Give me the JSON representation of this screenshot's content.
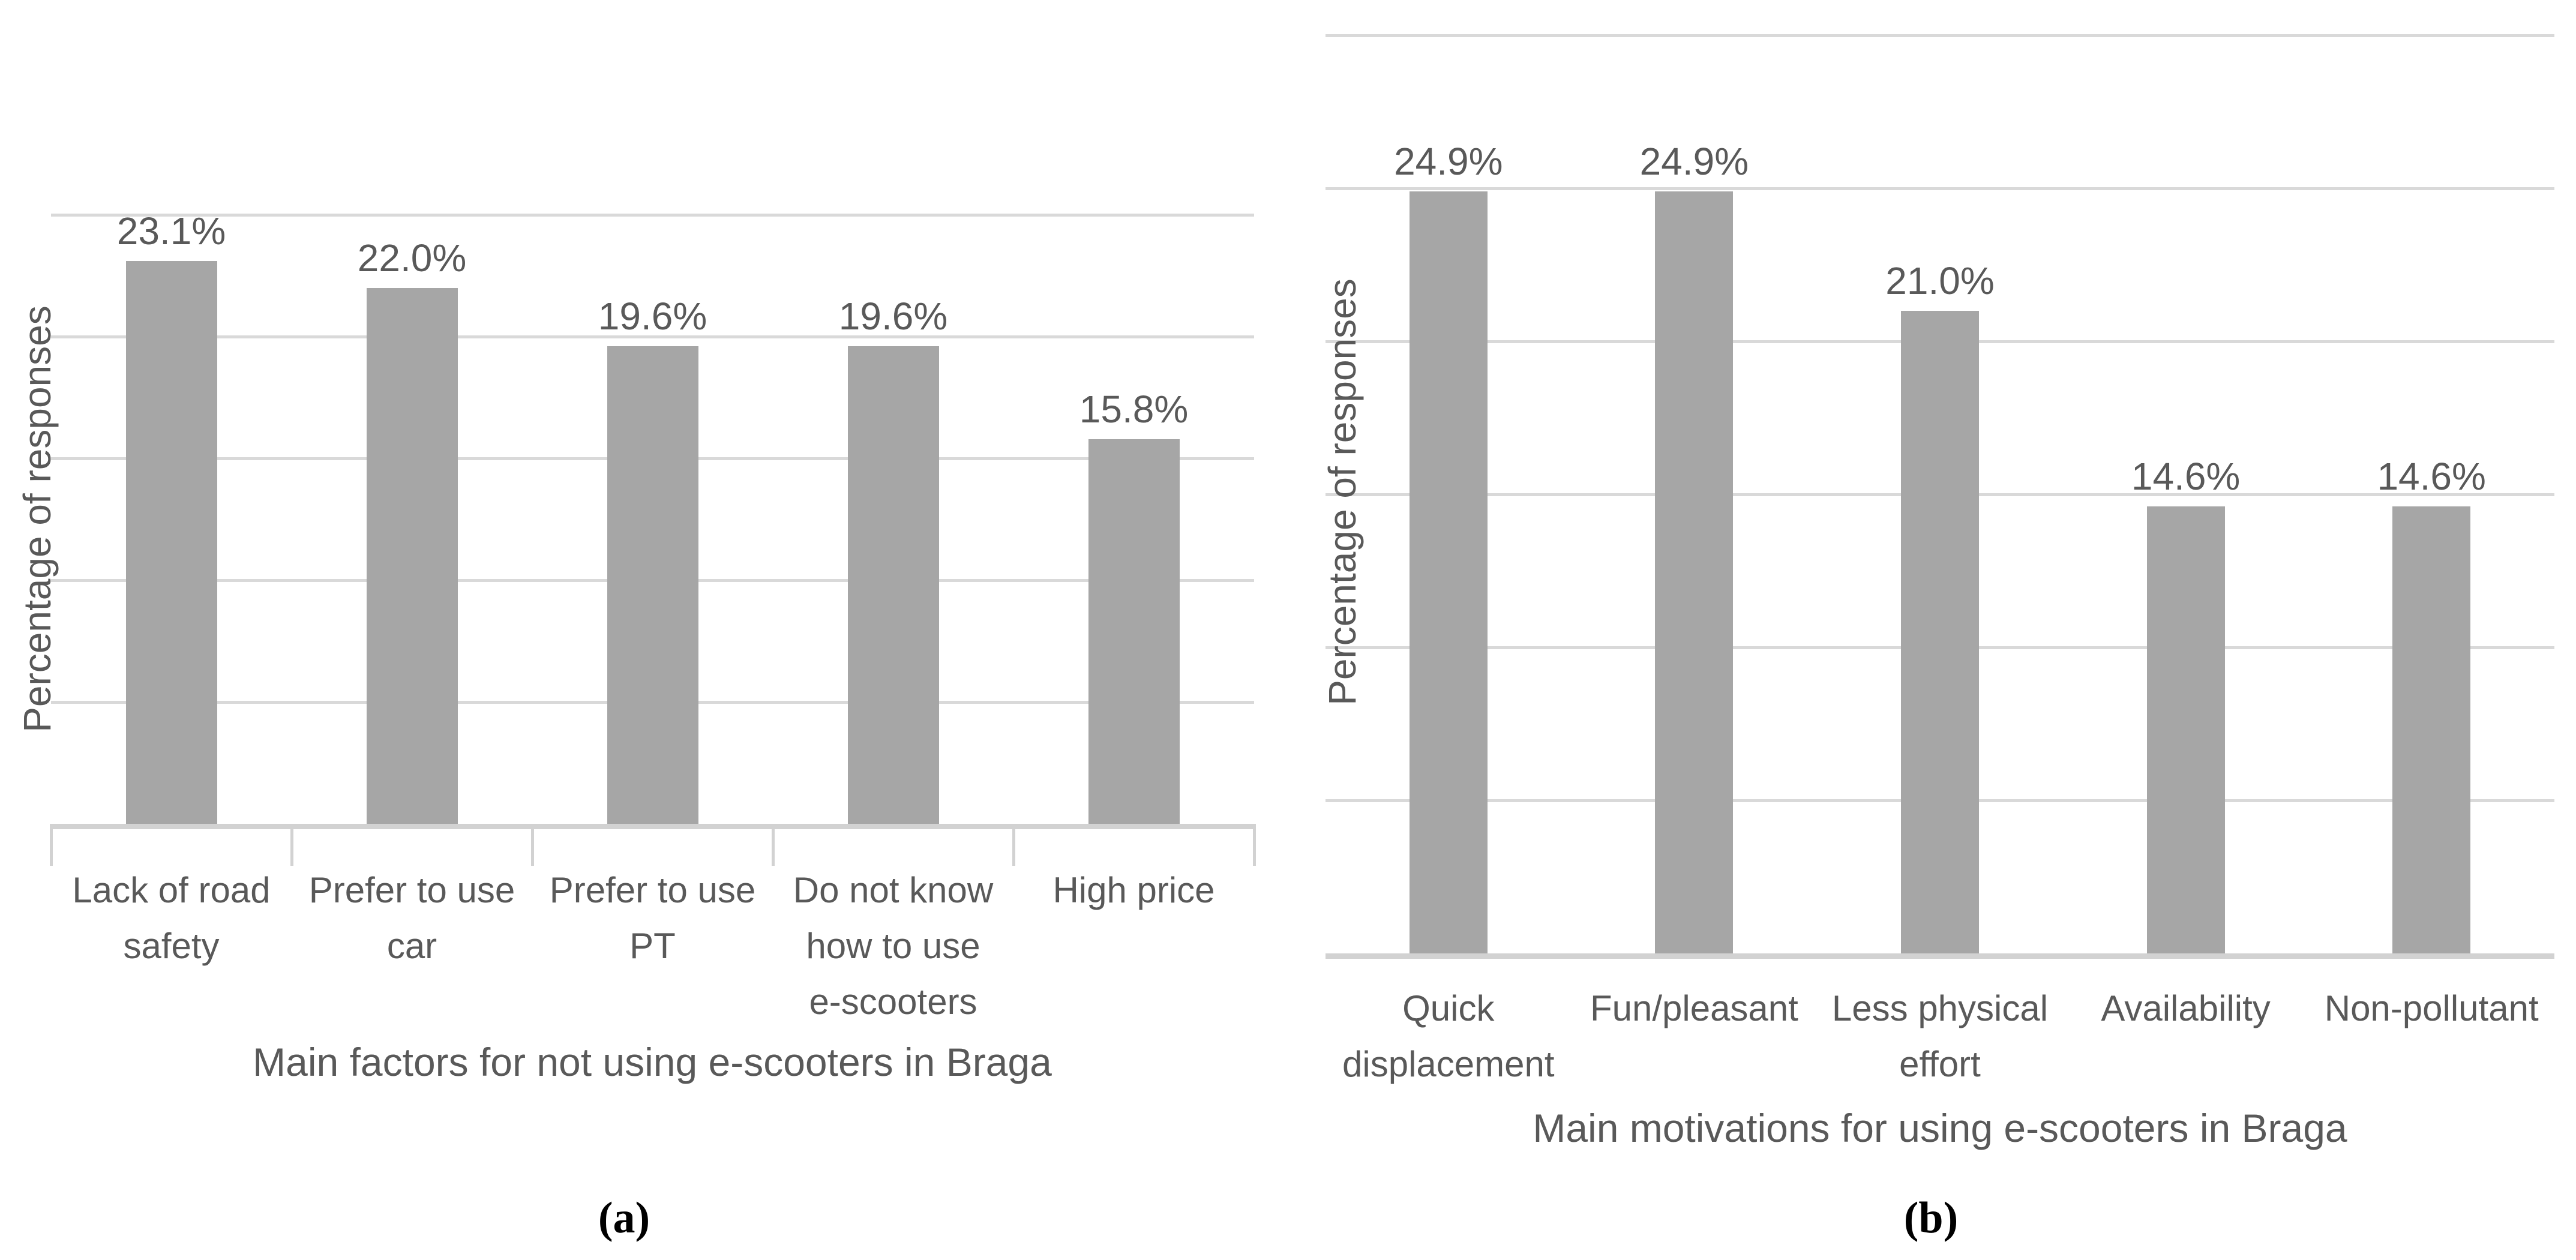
{
  "chart_data": [
    {
      "type": "bar",
      "panel_caption": "(a)",
      "title": "Main factors for not using e-scooters in Braga",
      "ylabel": "Percentage of responses",
      "categories": [
        "Lack of road\nsafety",
        "Prefer to use\ncar",
        "Prefer to use\nPT",
        "Do not know\nhow to use\ne-scooters",
        "High price"
      ],
      "values": [
        23.1,
        22.0,
        19.6,
        19.6,
        15.8
      ],
      "value_labels": [
        "23.1%",
        "22.0%",
        "19.6%",
        "19.6%",
        "15.8%"
      ],
      "ylim": [
        0,
        25
      ],
      "gridline_step": 5,
      "grid": true,
      "legend": "none",
      "y_tick_labels": "none",
      "colors": {
        "bar": "#a6a6a6",
        "gridline": "#d9d9d9",
        "axis": "#d2d2d2",
        "text": "#595959"
      }
    },
    {
      "type": "bar",
      "panel_caption": "(b)",
      "title": "Main motivations for using e-scooters in Braga",
      "ylabel": "Percentage of responses",
      "categories": [
        "Quick\ndisplacement",
        "Fun/pleasant",
        "Less physical\neffort",
        "Availability",
        "Non-pollutant"
      ],
      "values": [
        24.9,
        24.9,
        21.0,
        14.6,
        14.6
      ],
      "value_labels": [
        "24.9%",
        "24.9%",
        "21.0%",
        "14.6%",
        "14.6%"
      ],
      "ylim": [
        0,
        30
      ],
      "gridline_step": 5,
      "grid": true,
      "legend": "none",
      "y_tick_labels": "none",
      "colors": {
        "bar": "#a6a6a6",
        "gridline": "#d9d9d9",
        "axis": "#d2d2d2",
        "text": "#595959"
      }
    }
  ]
}
